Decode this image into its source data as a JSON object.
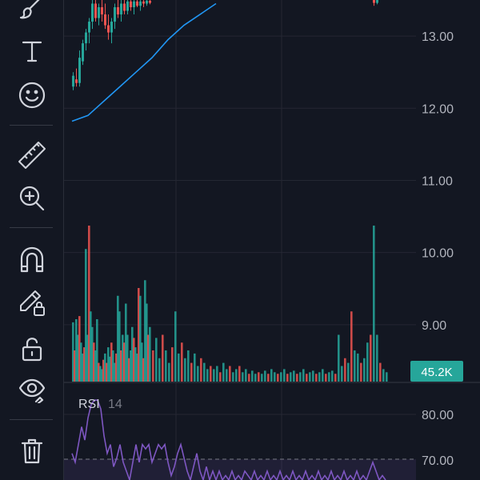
{
  "toolbar": {
    "tools": [
      {
        "name": "brush-tool",
        "icon": "brush-icon"
      },
      {
        "name": "text-tool",
        "icon": "text-icon"
      },
      {
        "name": "emoji-tool",
        "icon": "smiley-icon"
      },
      {
        "name": "ruler-tool",
        "icon": "ruler-icon"
      },
      {
        "name": "zoom-in-tool",
        "icon": "zoom-in-icon"
      },
      {
        "name": "magnet-tool",
        "icon": "magnet-icon"
      },
      {
        "name": "lock-drawings-tool",
        "icon": "pencil-lock-icon"
      },
      {
        "name": "unlock-tool",
        "icon": "unlock-icon"
      },
      {
        "name": "hide-drawings-tool",
        "icon": "eye-icon"
      },
      {
        "name": "delete-tool",
        "icon": "trash-icon"
      }
    ]
  },
  "colors": {
    "up": "#26a69a",
    "down": "#ef5350",
    "ma": "#2196f3",
    "rsi": "#7e57c2",
    "badge": "#26a69a",
    "axis_text": "#b2b5be",
    "grid": "#242733",
    "background": "#131722"
  },
  "price_axis": {
    "ticks": [
      "13.00",
      "12.00",
      "11.00",
      "10.00",
      "9.00"
    ]
  },
  "volume": {
    "badge": "45.2K"
  },
  "rsi": {
    "label": "RSI",
    "period": "14",
    "ticks": [
      "80.00",
      "70.00"
    ]
  },
  "chart_data": {
    "type": "candlestick",
    "price_range": [
      8.2,
      13.5
    ],
    "price_ticks": [
      13.0,
      12.0,
      11.0,
      10.0,
      9.0
    ],
    "ma_series": [
      [
        0,
        11.82
      ],
      [
        20,
        11.9
      ],
      [
        40,
        12.1
      ],
      [
        60,
        12.3
      ],
      [
        80,
        12.5
      ],
      [
        100,
        12.7
      ],
      [
        120,
        12.95
      ],
      [
        140,
        13.15
      ],
      [
        160,
        13.3
      ],
      [
        180,
        13.45
      ]
    ],
    "candles": [
      {
        "i": 0,
        "o": 12.3,
        "h": 12.5,
        "l": 12.25,
        "c": 12.45
      },
      {
        "i": 4,
        "o": 12.4,
        "h": 12.55,
        "l": 12.3,
        "c": 12.35
      },
      {
        "i": 8,
        "o": 12.35,
        "h": 12.8,
        "l": 12.3,
        "c": 12.7
      },
      {
        "i": 12,
        "o": 12.65,
        "h": 12.95,
        "l": 12.6,
        "c": 12.9
      },
      {
        "i": 16,
        "o": 12.9,
        "h": 13.1,
        "l": 12.8,
        "c": 13.05
      },
      {
        "i": 20,
        "o": 13.05,
        "h": 13.25,
        "l": 12.9,
        "c": 13.2
      },
      {
        "i": 24,
        "o": 13.2,
        "h": 13.5,
        "l": 13.1,
        "c": 13.45
      },
      {
        "i": 28,
        "o": 13.45,
        "h": 13.5,
        "l": 13.2,
        "c": 13.25
      },
      {
        "i": 32,
        "o": 13.25,
        "h": 13.45,
        "l": 13.15,
        "c": 13.4
      },
      {
        "i": 36,
        "o": 13.4,
        "h": 13.5,
        "l": 13.2,
        "c": 13.3
      },
      {
        "i": 40,
        "o": 13.3,
        "h": 13.45,
        "l": 13.1,
        "c": 13.15
      },
      {
        "i": 44,
        "o": 13.15,
        "h": 13.3,
        "l": 12.95,
        "c": 13.05
      },
      {
        "i": 48,
        "o": 13.05,
        "h": 13.25,
        "l": 12.9,
        "c": 13.2
      },
      {
        "i": 52,
        "o": 13.2,
        "h": 13.45,
        "l": 13.1,
        "c": 13.4
      },
      {
        "i": 56,
        "o": 13.4,
        "h": 13.5,
        "l": 13.25,
        "c": 13.3
      },
      {
        "i": 60,
        "o": 13.3,
        "h": 13.5,
        "l": 13.2,
        "c": 13.45
      },
      {
        "i": 64,
        "o": 13.45,
        "h": 13.5,
        "l": 13.3,
        "c": 13.35
      },
      {
        "i": 68,
        "o": 13.35,
        "h": 13.5,
        "l": 13.3,
        "c": 13.48
      },
      {
        "i": 72,
        "o": 13.48,
        "h": 13.5,
        "l": 13.35,
        "c": 13.4
      },
      {
        "i": 76,
        "o": 13.4,
        "h": 13.5,
        "l": 13.3,
        "c": 13.48
      },
      {
        "i": 80,
        "o": 13.48,
        "h": 13.5,
        "l": 13.4,
        "c": 13.42
      },
      {
        "i": 84,
        "o": 13.42,
        "h": 13.5,
        "l": 13.35,
        "c": 13.48
      },
      {
        "i": 88,
        "o": 13.48,
        "h": 13.5,
        "l": 13.4,
        "c": 13.45
      },
      {
        "i": 92,
        "o": 13.45,
        "h": 13.5,
        "l": 13.42,
        "c": 13.49
      },
      {
        "i": 96,
        "o": 13.49,
        "h": 13.5,
        "l": 13.44,
        "c": 13.46
      },
      {
        "i": 376,
        "o": 13.5,
        "h": 13.5,
        "l": 13.42,
        "c": 13.46
      },
      {
        "i": 380,
        "o": 13.46,
        "h": 13.5,
        "l": 13.44,
        "c": 13.5
      }
    ],
    "volume_bars": [
      {
        "i": 0,
        "v": 0.38,
        "up": true
      },
      {
        "i": 2,
        "v": 0.2,
        "up": false
      },
      {
        "i": 4,
        "v": 0.4,
        "up": true
      },
      {
        "i": 6,
        "v": 0.3,
        "up": true
      },
      {
        "i": 8,
        "v": 0.42,
        "up": false
      },
      {
        "i": 10,
        "v": 0.25,
        "up": true
      },
      {
        "i": 12,
        "v": 0.18,
        "up": true
      },
      {
        "i": 14,
        "v": 0.22,
        "up": false
      },
      {
        "i": 16,
        "v": 0.85,
        "up": true
      },
      {
        "i": 18,
        "v": 0.3,
        "up": true
      },
      {
        "i": 20,
        "v": 1.0,
        "up": false
      },
      {
        "i": 22,
        "v": 0.45,
        "up": true
      },
      {
        "i": 24,
        "v": 0.35,
        "up": true
      },
      {
        "i": 26,
        "v": 0.25,
        "up": false
      },
      {
        "i": 28,
        "v": 0.2,
        "up": true
      },
      {
        "i": 30,
        "v": 0.4,
        "up": true
      },
      {
        "i": 32,
        "v": 0.12,
        "up": false
      },
      {
        "i": 34,
        "v": 0.1,
        "up": true
      },
      {
        "i": 36,
        "v": 0.08,
        "up": true
      },
      {
        "i": 38,
        "v": 0.14,
        "up": false
      },
      {
        "i": 40,
        "v": 0.18,
        "up": true
      },
      {
        "i": 42,
        "v": 0.12,
        "up": false
      },
      {
        "i": 44,
        "v": 0.22,
        "up": true
      },
      {
        "i": 46,
        "v": 0.16,
        "up": true
      },
      {
        "i": 48,
        "v": 0.25,
        "up": false
      },
      {
        "i": 50,
        "v": 0.2,
        "up": true
      },
      {
        "i": 52,
        "v": 0.12,
        "up": true
      },
      {
        "i": 54,
        "v": 0.18,
        "up": false
      },
      {
        "i": 56,
        "v": 0.55,
        "up": true
      },
      {
        "i": 58,
        "v": 0.45,
        "up": true
      },
      {
        "i": 60,
        "v": 0.2,
        "up": false
      },
      {
        "i": 62,
        "v": 0.3,
        "up": true
      },
      {
        "i": 64,
        "v": 0.25,
        "up": false
      },
      {
        "i": 66,
        "v": 0.5,
        "up": true
      },
      {
        "i": 68,
        "v": 0.3,
        "up": true
      },
      {
        "i": 70,
        "v": 0.15,
        "up": false
      },
      {
        "i": 72,
        "v": 0.2,
        "up": true
      },
      {
        "i": 74,
        "v": 0.35,
        "up": true
      },
      {
        "i": 76,
        "v": 0.28,
        "up": false
      },
      {
        "i": 78,
        "v": 0.22,
        "up": true
      },
      {
        "i": 80,
        "v": 0.18,
        "up": true
      },
      {
        "i": 82,
        "v": 0.6,
        "up": false
      },
      {
        "i": 84,
        "v": 0.55,
        "up": true
      },
      {
        "i": 86,
        "v": 0.25,
        "up": true
      },
      {
        "i": 88,
        "v": 0.15,
        "up": false
      },
      {
        "i": 90,
        "v": 0.65,
        "up": true
      },
      {
        "i": 92,
        "v": 0.5,
        "up": true
      },
      {
        "i": 94,
        "v": 0.3,
        "up": false
      },
      {
        "i": 96,
        "v": 0.35,
        "up": true
      },
      {
        "i": 100,
        "v": 0.2,
        "up": false
      },
      {
        "i": 104,
        "v": 0.28,
        "up": true
      },
      {
        "i": 108,
        "v": 0.15,
        "up": true
      },
      {
        "i": 112,
        "v": 0.3,
        "up": false
      },
      {
        "i": 116,
        "v": 0.2,
        "up": true
      },
      {
        "i": 120,
        "v": 0.12,
        "up": true
      },
      {
        "i": 124,
        "v": 0.22,
        "up": false
      },
      {
        "i": 128,
        "v": 0.45,
        "up": true
      },
      {
        "i": 132,
        "v": 0.18,
        "up": true
      },
      {
        "i": 136,
        "v": 0.25,
        "up": false
      },
      {
        "i": 140,
        "v": 0.15,
        "up": true
      },
      {
        "i": 144,
        "v": 0.2,
        "up": true
      },
      {
        "i": 148,
        "v": 0.12,
        "up": false
      },
      {
        "i": 152,
        "v": 0.18,
        "up": true
      },
      {
        "i": 156,
        "v": 0.1,
        "up": true
      },
      {
        "i": 160,
        "v": 0.15,
        "up": false
      },
      {
        "i": 164,
        "v": 0.12,
        "up": true
      },
      {
        "i": 168,
        "v": 0.08,
        "up": true
      },
      {
        "i": 172,
        "v": 0.1,
        "up": false
      },
      {
        "i": 176,
        "v": 0.08,
        "up": true
      },
      {
        "i": 180,
        "v": 0.1,
        "up": true
      },
      {
        "i": 184,
        "v": 0.06,
        "up": false
      },
      {
        "i": 188,
        "v": 0.12,
        "up": true
      },
      {
        "i": 192,
        "v": 0.08,
        "up": true
      },
      {
        "i": 196,
        "v": 0.1,
        "up": false
      },
      {
        "i": 200,
        "v": 0.06,
        "up": true
      },
      {
        "i": 204,
        "v": 0.08,
        "up": true
      },
      {
        "i": 208,
        "v": 0.1,
        "up": false
      },
      {
        "i": 212,
        "v": 0.06,
        "up": true
      },
      {
        "i": 216,
        "v": 0.08,
        "up": true
      },
      {
        "i": 220,
        "v": 0.05,
        "up": false
      },
      {
        "i": 224,
        "v": 0.07,
        "up": true
      },
      {
        "i": 228,
        "v": 0.05,
        "up": true
      },
      {
        "i": 232,
        "v": 0.06,
        "up": false
      },
      {
        "i": 236,
        "v": 0.05,
        "up": true
      },
      {
        "i": 240,
        "v": 0.07,
        "up": true
      },
      {
        "i": 244,
        "v": 0.05,
        "up": false
      },
      {
        "i": 248,
        "v": 0.08,
        "up": true
      },
      {
        "i": 252,
        "v": 0.06,
        "up": true
      },
      {
        "i": 256,
        "v": 0.05,
        "up": false
      },
      {
        "i": 260,
        "v": 0.06,
        "up": true
      },
      {
        "i": 264,
        "v": 0.08,
        "up": true
      },
      {
        "i": 268,
        "v": 0.05,
        "up": false
      },
      {
        "i": 272,
        "v": 0.06,
        "up": true
      },
      {
        "i": 276,
        "v": 0.07,
        "up": true
      },
      {
        "i": 280,
        "v": 0.05,
        "up": false
      },
      {
        "i": 284,
        "v": 0.06,
        "up": true
      },
      {
        "i": 288,
        "v": 0.08,
        "up": true
      },
      {
        "i": 292,
        "v": 0.05,
        "up": false
      },
      {
        "i": 296,
        "v": 0.06,
        "up": true
      },
      {
        "i": 300,
        "v": 0.07,
        "up": true
      },
      {
        "i": 304,
        "v": 0.05,
        "up": false
      },
      {
        "i": 308,
        "v": 0.06,
        "up": true
      },
      {
        "i": 312,
        "v": 0.08,
        "up": true
      },
      {
        "i": 316,
        "v": 0.05,
        "up": false
      },
      {
        "i": 320,
        "v": 0.06,
        "up": true
      },
      {
        "i": 324,
        "v": 0.07,
        "up": true
      },
      {
        "i": 328,
        "v": 0.05,
        "up": false
      },
      {
        "i": 332,
        "v": 0.3,
        "up": true
      },
      {
        "i": 336,
        "v": 0.1,
        "up": true
      },
      {
        "i": 340,
        "v": 0.15,
        "up": false
      },
      {
        "i": 344,
        "v": 0.12,
        "up": true
      },
      {
        "i": 348,
        "v": 0.45,
        "up": false
      },
      {
        "i": 352,
        "v": 0.2,
        "up": true
      },
      {
        "i": 356,
        "v": 0.18,
        "up": true
      },
      {
        "i": 360,
        "v": 0.12,
        "up": false
      },
      {
        "i": 364,
        "v": 0.15,
        "up": true
      },
      {
        "i": 368,
        "v": 0.25,
        "up": true
      },
      {
        "i": 372,
        "v": 0.3,
        "up": false
      },
      {
        "i": 376,
        "v": 1.0,
        "up": true
      },
      {
        "i": 380,
        "v": 0.3,
        "up": true
      },
      {
        "i": 384,
        "v": 0.12,
        "up": false
      },
      {
        "i": 388,
        "v": 0.08,
        "up": true
      },
      {
        "i": 392,
        "v": 0.06,
        "up": true
      }
    ],
    "rsi_range": [
      62,
      84
    ],
    "rsi_ticks": [
      80.0,
      70.0
    ],
    "rsi_series": [
      [
        0,
        68
      ],
      [
        4,
        66
      ],
      [
        8,
        70
      ],
      [
        12,
        74
      ],
      [
        16,
        71
      ],
      [
        20,
        76
      ],
      [
        24,
        79
      ],
      [
        28,
        80
      ],
      [
        32,
        80
      ],
      [
        36,
        78
      ],
      [
        40,
        72
      ],
      [
        44,
        68
      ],
      [
        48,
        70
      ],
      [
        52,
        65
      ],
      [
        56,
        67
      ],
      [
        60,
        70
      ],
      [
        64,
        66
      ],
      [
        68,
        64
      ],
      [
        72,
        62
      ],
      [
        76,
        66
      ],
      [
        80,
        70
      ],
      [
        84,
        66
      ],
      [
        88,
        70
      ],
      [
        92,
        69
      ],
      [
        96,
        70
      ],
      [
        100,
        66
      ],
      [
        104,
        68
      ],
      [
        108,
        70
      ],
      [
        112,
        69
      ],
      [
        116,
        70
      ],
      [
        120,
        66
      ],
      [
        124,
        63
      ],
      [
        128,
        65
      ],
      [
        132,
        68
      ],
      [
        136,
        70
      ],
      [
        140,
        67
      ],
      [
        144,
        64
      ],
      [
        148,
        62
      ],
      [
        152,
        65
      ],
      [
        156,
        68
      ],
      [
        160,
        64
      ],
      [
        164,
        62
      ],
      [
        168,
        65
      ],
      [
        172,
        62
      ],
      [
        176,
        64
      ],
      [
        180,
        62
      ],
      [
        184,
        64
      ],
      [
        188,
        62
      ],
      [
        192,
        63
      ],
      [
        196,
        62
      ],
      [
        200,
        64
      ],
      [
        204,
        62
      ],
      [
        208,
        63
      ],
      [
        212,
        62
      ],
      [
        216,
        64
      ],
      [
        220,
        63
      ],
      [
        224,
        62
      ],
      [
        228,
        64
      ],
      [
        232,
        62
      ],
      [
        236,
        63
      ],
      [
        240,
        62
      ],
      [
        244,
        64
      ],
      [
        248,
        62
      ],
      [
        252,
        63
      ],
      [
        256,
        62
      ],
      [
        260,
        64
      ],
      [
        264,
        62
      ],
      [
        268,
        63
      ],
      [
        272,
        62
      ],
      [
        276,
        64
      ],
      [
        280,
        62
      ],
      [
        284,
        63
      ],
      [
        288,
        62
      ],
      [
        292,
        64
      ],
      [
        296,
        62
      ],
      [
        300,
        63
      ],
      [
        304,
        62
      ],
      [
        308,
        64
      ],
      [
        312,
        62
      ],
      [
        316,
        63
      ],
      [
        320,
        62
      ],
      [
        324,
        64
      ],
      [
        328,
        62
      ],
      [
        332,
        63
      ],
      [
        336,
        62
      ],
      [
        340,
        64
      ],
      [
        344,
        62
      ],
      [
        348,
        63
      ],
      [
        352,
        62
      ],
      [
        356,
        64
      ],
      [
        360,
        62
      ],
      [
        364,
        63
      ],
      [
        368,
        62
      ],
      [
        372,
        64
      ],
      [
        376,
        66
      ],
      [
        380,
        64
      ],
      [
        384,
        62
      ],
      [
        388,
        63
      ],
      [
        392,
        62
      ]
    ],
    "rsi_overbought": 70
  }
}
